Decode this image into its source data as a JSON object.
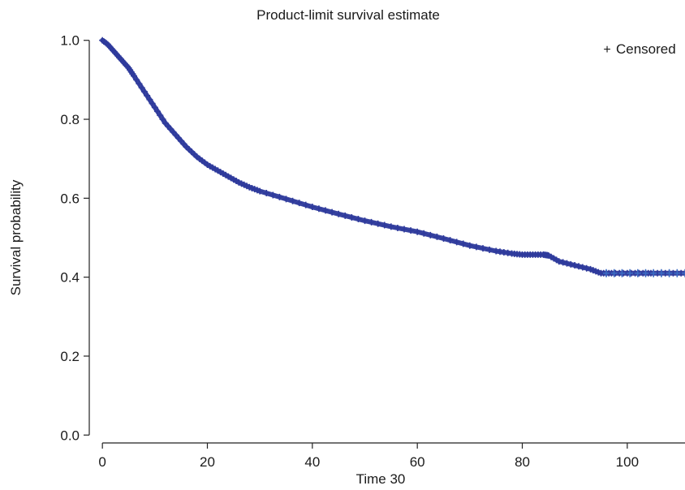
{
  "chart_data": {
    "type": "line",
    "title": "Product-limit survival estimate",
    "xlabel": "Time 30",
    "ylabel": "Survival probability",
    "xlim": [
      -2.5,
      111
    ],
    "ylim": [
      -0.02,
      1.02
    ],
    "x_ticks": [
      0,
      20,
      40,
      60,
      80,
      100
    ],
    "y_ticks": [
      0.0,
      0.2,
      0.4,
      0.6,
      0.8,
      1.0
    ],
    "x_tick_labels": [
      "0",
      "20",
      "40",
      "60",
      "80",
      "100"
    ],
    "y_tick_labels": [
      "0.0",
      "0.2",
      "0.4",
      "0.6",
      "0.8",
      "1.0"
    ],
    "grid": false,
    "legend": {
      "position": "top-right",
      "marker": "+",
      "label": "Censored"
    },
    "series_color": "#2e3a9c",
    "legend_marker_color": "#3b6cc4",
    "series": [
      {
        "x": [
          0,
          1,
          2,
          3,
          4,
          5,
          6,
          8,
          10,
          12,
          14,
          16,
          18,
          20,
          22,
          24,
          26,
          28,
          30,
          35,
          40,
          45,
          50,
          55,
          60,
          65,
          70,
          75,
          78,
          80,
          82,
          84,
          85,
          87,
          90,
          93,
          95,
          97,
          100,
          103,
          105,
          108,
          111
        ],
        "y": [
          1.0,
          0.99,
          0.975,
          0.96,
          0.945,
          0.93,
          0.91,
          0.87,
          0.83,
          0.79,
          0.76,
          0.73,
          0.705,
          0.685,
          0.67,
          0.655,
          0.64,
          0.628,
          0.618,
          0.598,
          0.578,
          0.56,
          0.543,
          0.528,
          0.515,
          0.498,
          0.48,
          0.466,
          0.46,
          0.457,
          0.457,
          0.457,
          0.455,
          0.44,
          0.43,
          0.42,
          0.41,
          0.41,
          0.41,
          0.41,
          0.41,
          0.41,
          0.41
        ]
      }
    ],
    "censored_x": [
      96,
      97.5,
      99,
      100.5,
      102,
      103.5,
      105,
      106.5,
      108,
      109.5,
      111
    ]
  }
}
